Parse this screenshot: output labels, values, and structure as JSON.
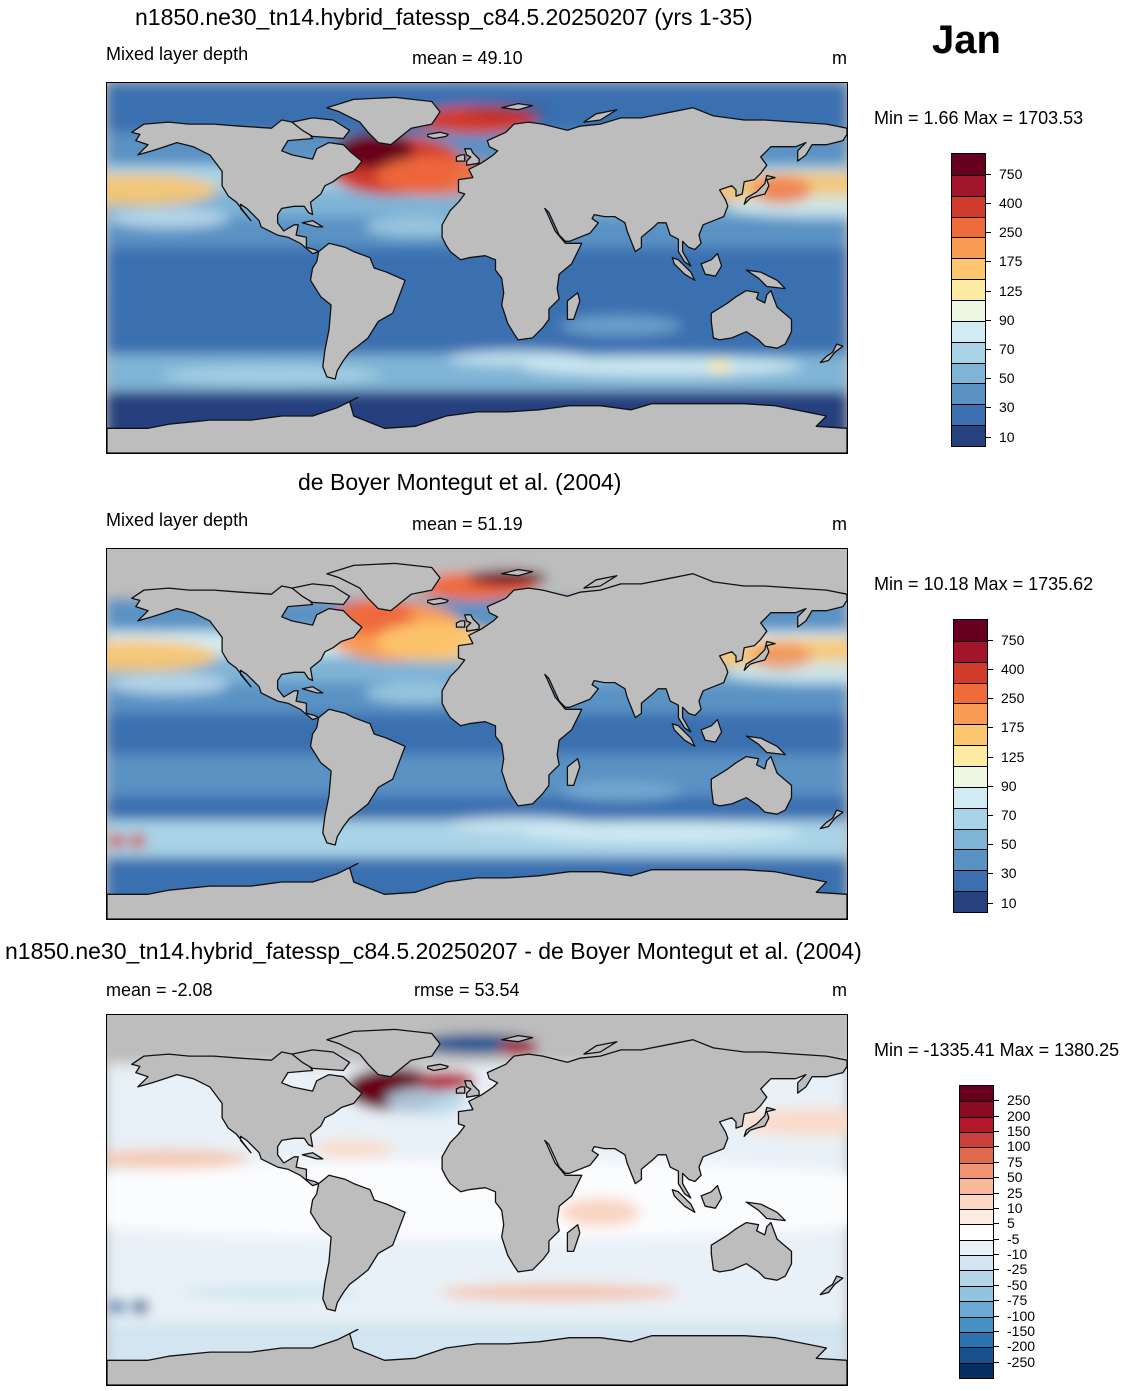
{
  "month": "Jan",
  "panels": [
    {
      "title": "n1850.ne30_tn14.hybrid_fatessp_c84.5.20250207 (yrs 1-35)",
      "left_label": "Mixed layer depth",
      "center_label": "mean =  49.10",
      "units": "m",
      "minmax": "Min =   1.66 Max = 1703.53",
      "colorbar_labels": [
        "750",
        "400",
        "250",
        "175",
        "125",
        "90",
        "70",
        "50",
        "30",
        "10"
      ],
      "colors": [
        "#67001f",
        "#a2152b",
        "#d13b2b",
        "#ef6b3c",
        "#f99b52",
        "#fcc66e",
        "#feeba3",
        "#eef7e4",
        "#d1ebf3",
        "#a9d3e6",
        "#7fb4d6",
        "#5a92c4",
        "#3a6fb0",
        "#27417f"
      ]
    },
    {
      "title": "de Boyer Montegut et al. (2004)",
      "left_label": "Mixed layer depth",
      "center_label": "mean =  51.19",
      "units": "m",
      "minmax": "Min =  10.18 Max = 1735.62",
      "colorbar_labels": [
        "750",
        "400",
        "250",
        "175",
        "125",
        "90",
        "70",
        "50",
        "30",
        "10"
      ],
      "colors": [
        "#67001f",
        "#a2152b",
        "#d13b2b",
        "#ef6b3c",
        "#f99b52",
        "#fcc66e",
        "#feeba3",
        "#eef7e4",
        "#d1ebf3",
        "#a9d3e6",
        "#7fb4d6",
        "#5a92c4",
        "#3a6fb0",
        "#27417f"
      ]
    },
    {
      "title": "n1850.ne30_tn14.hybrid_fatessp_c84.5.20250207 - de Boyer Montegut et al. (2004)",
      "left_label": "mean =  -2.08",
      "center_label": "rmse =  53.54",
      "units": "m",
      "minmax": "Min = -1335.41 Max = 1380.25",
      "colorbar_labels": [
        "250",
        "200",
        "150",
        "100",
        "75",
        "50",
        "25",
        "10",
        "5",
        "-5",
        "-10",
        "-25",
        "-50",
        "-75",
        "-100",
        "-150",
        "-200",
        "-250"
      ],
      "colors": [
        "#67001f",
        "#8b0a24",
        "#b2182b",
        "#cb3f3c",
        "#e0684f",
        "#f09474",
        "#f8b99a",
        "#fcd8c4",
        "#fdece2",
        "#ffffff",
        "#e8f1f7",
        "#d2e5f0",
        "#b4d6e8",
        "#92c4df",
        "#6aaad2",
        "#4691c3",
        "#2a72b0",
        "#17528f",
        "#053061"
      ]
    }
  ],
  "chart_data": [
    {
      "type": "heatmap",
      "title": "n1850.ne30_tn14.hybrid_fatessp_c84.5.20250207 (yrs 1-35)",
      "subtitle": "Mixed layer depth",
      "units": "m",
      "mean": 49.1,
      "min": 1.66,
      "max": 1703.53,
      "colorbar_levels": [
        10,
        20,
        30,
        40,
        50,
        60,
        70,
        80,
        90,
        110,
        125,
        150,
        175,
        200,
        250,
        300,
        400,
        500,
        750
      ]
    },
    {
      "type": "heatmap",
      "title": "de Boyer Montegut et al. (2004)",
      "subtitle": "Mixed layer depth",
      "units": "m",
      "mean": 51.19,
      "min": 10.18,
      "max": 1735.62,
      "colorbar_levels": [
        10,
        20,
        30,
        40,
        50,
        60,
        70,
        80,
        90,
        110,
        125,
        150,
        175,
        200,
        250,
        300,
        400,
        500,
        750
      ]
    },
    {
      "type": "heatmap",
      "title": "n1850.ne30_tn14.hybrid_fatessp_c84.5.20250207 - de Boyer Montegut et al. (2004)",
      "units": "m",
      "mean": -2.08,
      "rmse": 53.54,
      "min": -1335.41,
      "max": 1380.25,
      "colorbar_levels": [
        -250,
        -200,
        -150,
        -100,
        -75,
        -50,
        -25,
        -10,
        -5,
        5,
        10,
        25,
        50,
        75,
        100,
        150,
        200,
        250
      ]
    }
  ]
}
